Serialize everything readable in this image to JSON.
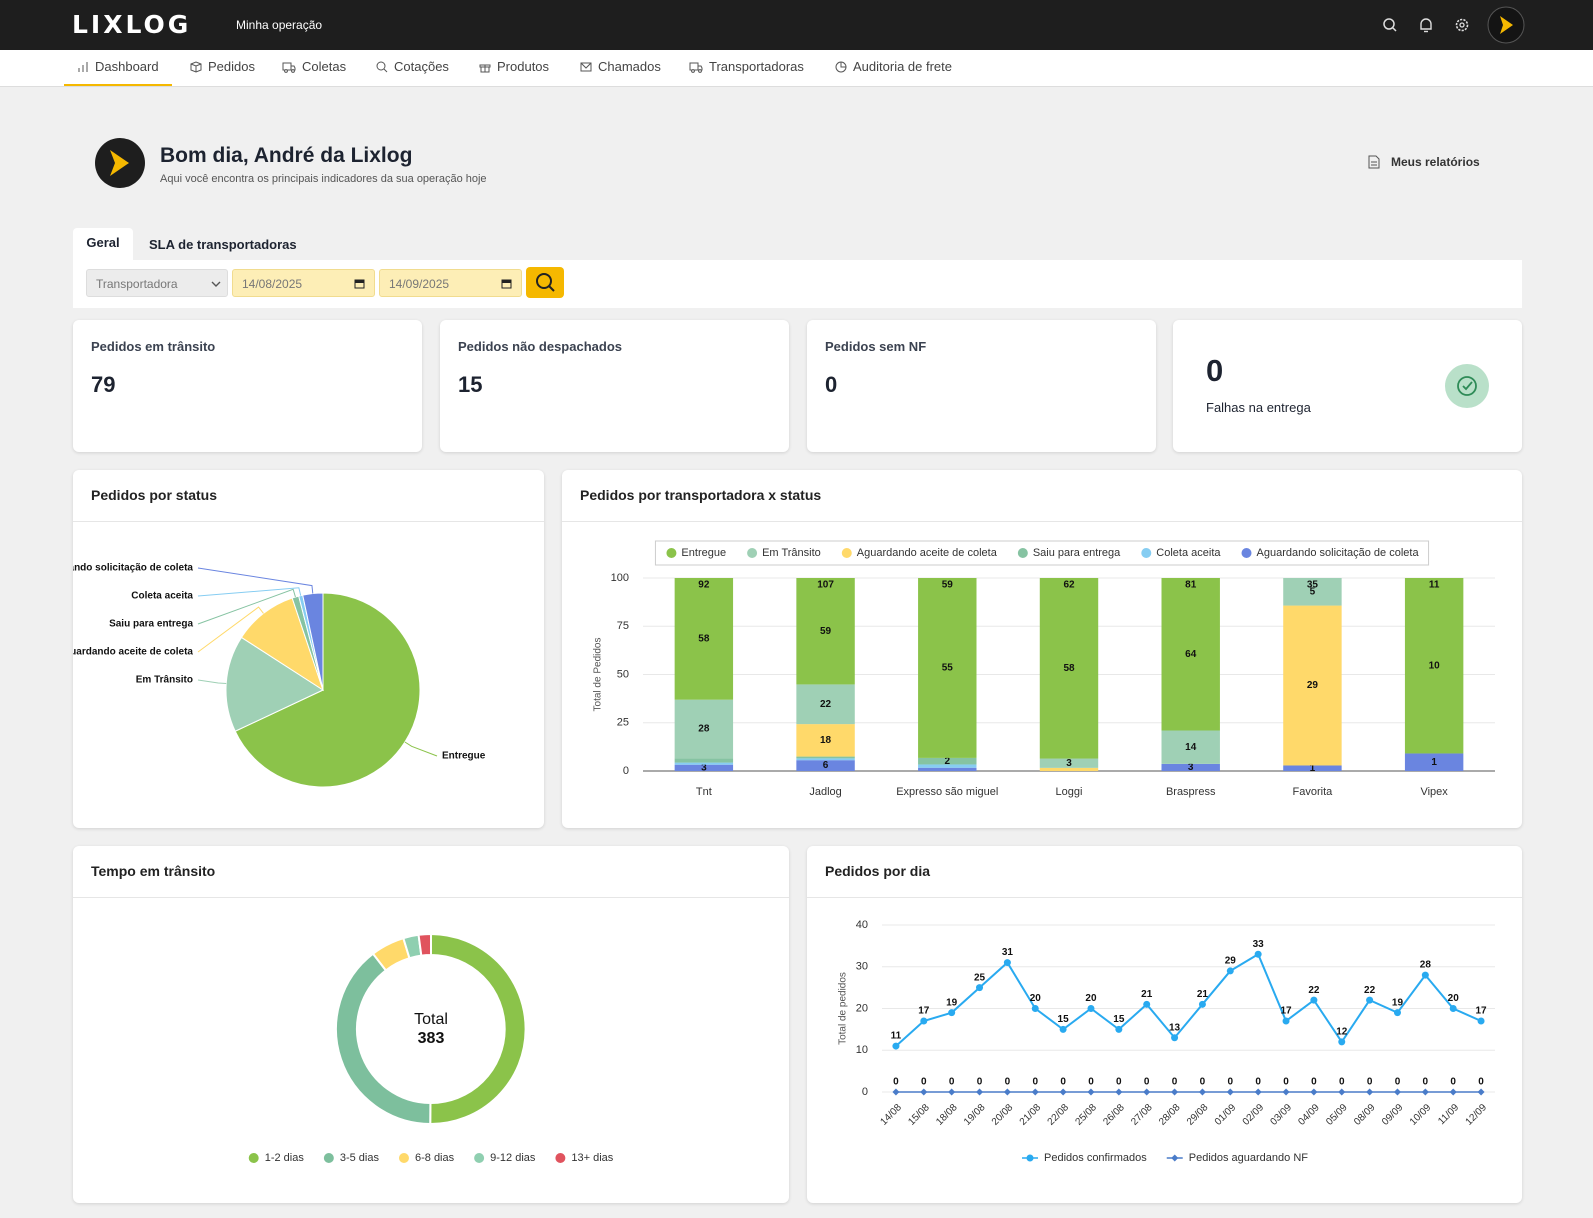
{
  "header": {
    "brand": "LIXLOG",
    "subtitle": "Minha operação"
  },
  "nav": [
    "Dashboard",
    "Pedidos",
    "Coletas",
    "Cotações",
    "Produtos",
    "Chamados",
    "Transportadoras",
    "Auditoria de frete"
  ],
  "greeting": {
    "title": "Bom dia, André da Lixlog",
    "subtitle": "Aqui você encontra os principais indicadores da sua operação hoje",
    "reports": "Meus relatórios"
  },
  "tabs": [
    "Geral",
    "SLA de transportadoras"
  ],
  "filters": {
    "carrier": "Transportadora",
    "date_from": "14/08/2025",
    "date_to": "14/09/2025"
  },
  "kpis": [
    {
      "label": "Pedidos em trânsito",
      "value": 79
    },
    {
      "label": "Pedidos não despachados",
      "value": 15
    },
    {
      "label": "Pedidos sem NF",
      "value": 0
    },
    {
      "label": "Falhas na entrega",
      "value": 0
    }
  ],
  "chart_data": [
    {
      "type": "pie",
      "title": "Pedidos por status",
      "categories": [
        "Entregue",
        "Em Trânsito",
        "Aguardando aceite de coleta",
        "Saiu para entrega",
        "Coleta aceita",
        "Aguardando solicitação de coleta"
      ],
      "values": [
        304,
        72,
        48,
        5,
        3,
        15
      ],
      "colors": [
        "#8bc34a",
        "#9fd0b5",
        "#ffd96a",
        "#86c3a2",
        "#86cdf2",
        "#6a85e0"
      ]
    },
    {
      "type": "bar",
      "title": "Pedidos por transportadora x status",
      "stacked": "percent",
      "categories": [
        "Tnt",
        "Jadlog",
        "Expresso são miguel",
        "Loggi",
        "Braspress",
        "Favorita",
        "Vipex"
      ],
      "series": [
        {
          "name": "Entregue",
          "color": "#8bc34a",
          "values": [
            58,
            59,
            55,
            58,
            64,
            0,
            10
          ]
        },
        {
          "name": "Em Trânsito",
          "color": "#9fd0b5",
          "values": [
            28,
            22,
            0,
            3,
            14,
            5,
            0
          ]
        },
        {
          "name": "Aguardando aceite de coleta",
          "color": "#ffd96a",
          "values": [
            0,
            18,
            0,
            1,
            0,
            29,
            0
          ]
        },
        {
          "name": "Saiu para entrega",
          "color": "#86c3a2",
          "values": [
            2,
            1,
            2,
            0,
            0,
            0,
            0
          ]
        },
        {
          "name": "Coleta aceita",
          "color": "#86cdf2",
          "values": [
            1,
            1,
            1,
            0,
            0,
            0,
            0
          ]
        },
        {
          "name": "Aguardando solicitação de coleta",
          "color": "#6a85e0",
          "values": [
            3,
            6,
            1,
            0,
            3,
            1,
            1
          ]
        }
      ],
      "totals": [
        92,
        107,
        59,
        62,
        81,
        35,
        11
      ],
      "ylim": [
        0,
        100
      ],
      "yticks": [
        0,
        25,
        50,
        75,
        100
      ],
      "ylabel": "Total de Pedidos",
      "grid": true,
      "legend": "top"
    },
    {
      "type": "donut",
      "title": "Tempo em trânsito",
      "center_label": "Total",
      "total": 383,
      "categories": [
        "1-2 dias",
        "3-5 dias",
        "6-8 dias",
        "9-12 dias",
        "13+ dias"
      ],
      "values": [
        192,
        151,
        22,
        10,
        8
      ],
      "colors": [
        "#8bc34a",
        "#7dbf9d",
        "#ffd96a",
        "#8fcfb0",
        "#e0535e"
      ],
      "legend": "bottom"
    },
    {
      "type": "line",
      "title": "Pedidos por dia",
      "x": [
        "14/08",
        "15/08",
        "18/08",
        "19/08",
        "20/08",
        "21/08",
        "22/08",
        "25/08",
        "26/08",
        "27/08",
        "28/08",
        "29/08",
        "01/09",
        "02/09",
        "03/09",
        "04/09",
        "05/09",
        "08/09",
        "09/09",
        "10/09",
        "11/09",
        "12/09"
      ],
      "series": [
        {
          "name": "Pedidos confirmados",
          "color": "#29aaf0",
          "values": [
            11,
            17,
            19,
            25,
            31,
            20,
            15,
            20,
            15,
            21,
            13,
            21,
            29,
            33,
            17,
            22,
            12,
            22,
            19,
            28,
            20,
            17
          ]
        },
        {
          "name": "Pedidos aguardando NF",
          "color": "#4a7cc9",
          "values": [
            0,
            0,
            0,
            0,
            0,
            0,
            0,
            0,
            0,
            0,
            0,
            0,
            0,
            0,
            0,
            0,
            0,
            0,
            0,
            0,
            0,
            0
          ]
        }
      ],
      "ylim": [
        0,
        40
      ],
      "yticks": [
        0,
        10,
        20,
        30,
        40
      ],
      "ylabel": "Total de pedidos",
      "grid": true,
      "legend": "bottom"
    }
  ]
}
